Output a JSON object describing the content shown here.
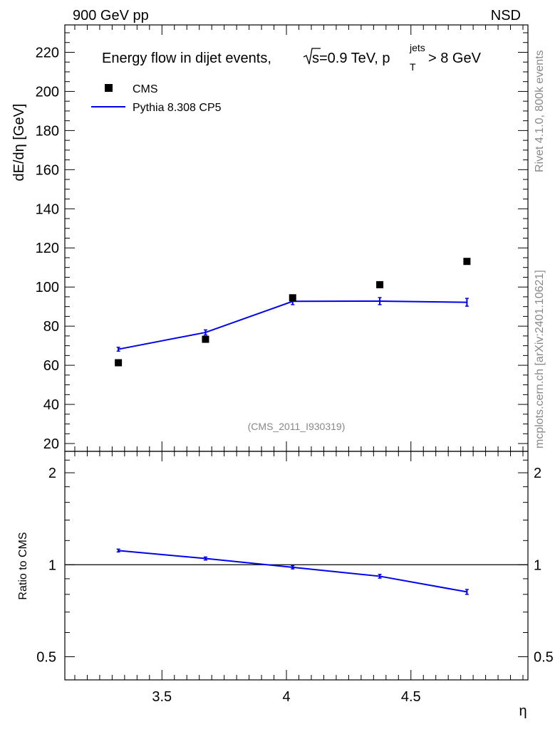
{
  "header": {
    "left": "900 GeV pp",
    "right": "NSD"
  },
  "side_text": {
    "rivet": "Rivet 4.1.0,  800k events",
    "mcplots": "mcplots.cern.ch [arXiv:2401.10621]"
  },
  "watermark": "(CMS_2011_I930319)",
  "chart_data": [
    {
      "type": "scatter",
      "panel": "main",
      "title": {
        "prefix": "Energy flow in dijet events,",
        "sqrt_s": "s",
        "energy": "=0.9 TeV, p",
        "sup": "jets",
        "sub": "T",
        "suffix": " > 8 GeV"
      },
      "ylabel": "dE/dη [GeV]",
      "xlim": [
        3.11,
        4.97
      ],
      "ylim": [
        16,
        234
      ],
      "yticks": [
        20,
        40,
        60,
        80,
        100,
        120,
        140,
        160,
        180,
        200,
        220
      ],
      "legend_position": "top-left",
      "series": [
        {
          "name": "CMS",
          "style": "markers",
          "color": "#000000",
          "x": [
            3.325,
            3.675,
            4.025,
            4.375,
            4.725
          ],
          "y": [
            61.3,
            73.3,
            94.5,
            101.2,
            113.1
          ]
        },
        {
          "name": "Pythia 8.308 CP5",
          "style": "line",
          "color": "#0000ee",
          "x": [
            3.325,
            3.675,
            4.025,
            4.375,
            4.725
          ],
          "y": [
            68.2,
            76.8,
            92.7,
            92.8,
            92.2
          ],
          "err": [
            1.0,
            1.3,
            1.7,
            1.8,
            2.0
          ]
        }
      ]
    },
    {
      "type": "line",
      "panel": "ratio",
      "ylabel": "Ratio to CMS",
      "xlabel": "η",
      "yscale": "log",
      "xlim": [
        3.11,
        4.97
      ],
      "ylim": [
        0.42,
        2.35
      ],
      "yticks": [
        0.5,
        1,
        2
      ],
      "xticks": [
        3.5,
        4,
        4.5
      ],
      "reference_line": 1,
      "series": [
        {
          "name": "Pythia 8.308 CP5",
          "color": "#0000ee",
          "x": [
            3.325,
            3.675,
            4.025,
            4.375,
            4.725
          ],
          "y": [
            1.113,
            1.048,
            0.981,
            0.917,
            0.815
          ],
          "err": [
            0.012,
            0.012,
            0.012,
            0.013,
            0.015
          ]
        }
      ]
    }
  ]
}
